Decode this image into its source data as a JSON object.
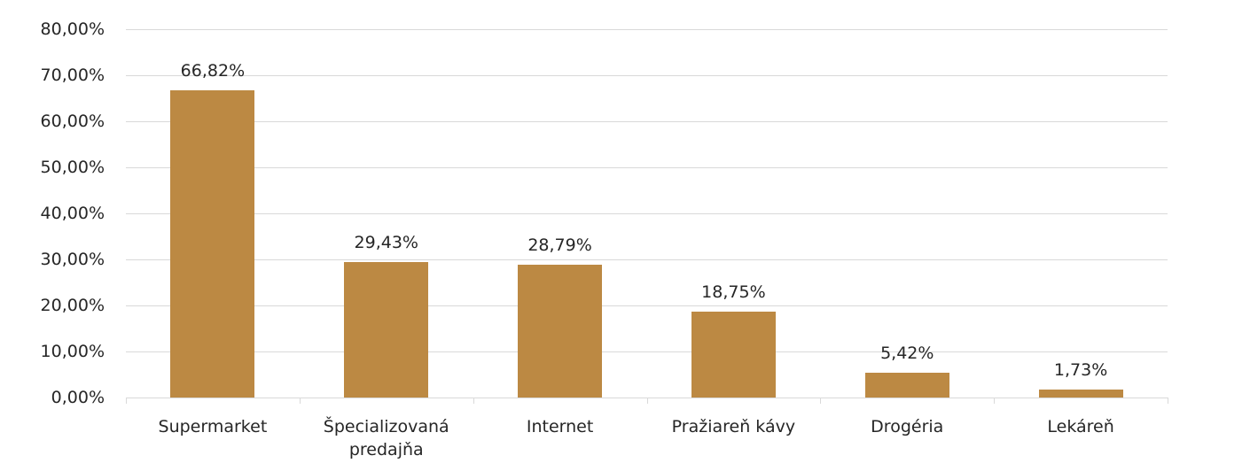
{
  "chart_data": {
    "type": "bar",
    "title": "",
    "xlabel": "",
    "ylabel": "",
    "categories": [
      "Supermarket",
      "Špecializovaná predajňa",
      "Internet",
      "Pražiareň kávy",
      "Drogéria",
      "Lekáreň"
    ],
    "category_lines": [
      [
        "Supermarket"
      ],
      [
        "Špecializovaná",
        "predajňa"
      ],
      [
        "Internet"
      ],
      [
        "Pražiareň kávy"
      ],
      [
        "Drogéria"
      ],
      [
        "Lekáreň"
      ]
    ],
    "values": [
      66.82,
      29.43,
      28.79,
      18.75,
      5.42,
      1.73
    ],
    "data_labels": [
      "66,82%",
      "29,43%",
      "28,79%",
      "18,75%",
      "5,42%",
      "1,73%"
    ],
    "ylim": [
      0,
      80
    ],
    "yticks": [
      0,
      10,
      20,
      30,
      40,
      50,
      60,
      70,
      80
    ],
    "ytick_labels": [
      "0,00%",
      "10,00%",
      "20,00%",
      "30,00%",
      "40,00%",
      "50,00%",
      "60,00%",
      "70,00%",
      "80,00%"
    ],
    "grid": true,
    "legend": null,
    "colors": {
      "bar": "#bc8943",
      "grid": "#d9d9d9",
      "text": "#262626"
    }
  }
}
